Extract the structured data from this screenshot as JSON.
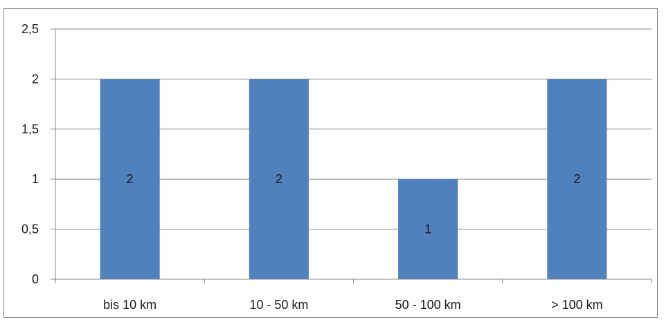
{
  "chart_data": {
    "type": "bar",
    "title": "",
    "xlabel": "",
    "ylabel": "",
    "categories": [
      "bis 10 km",
      "10 - 50 km",
      "50 - 100 km",
      "> 100 km"
    ],
    "values": [
      2,
      2,
      1,
      2
    ],
    "data_labels": [
      "2",
      "2",
      "1",
      "2"
    ],
    "ylim": [
      0,
      2.5
    ],
    "y_ticks": [
      0,
      0.5,
      1,
      1.5,
      2,
      2.5
    ],
    "y_tick_labels": [
      "0",
      "0,5",
      "1",
      "1,5",
      "2",
      "2,5"
    ],
    "grid": true,
    "legend": "none",
    "bar_color": "#4f81bd",
    "grid_color": "#878787"
  }
}
